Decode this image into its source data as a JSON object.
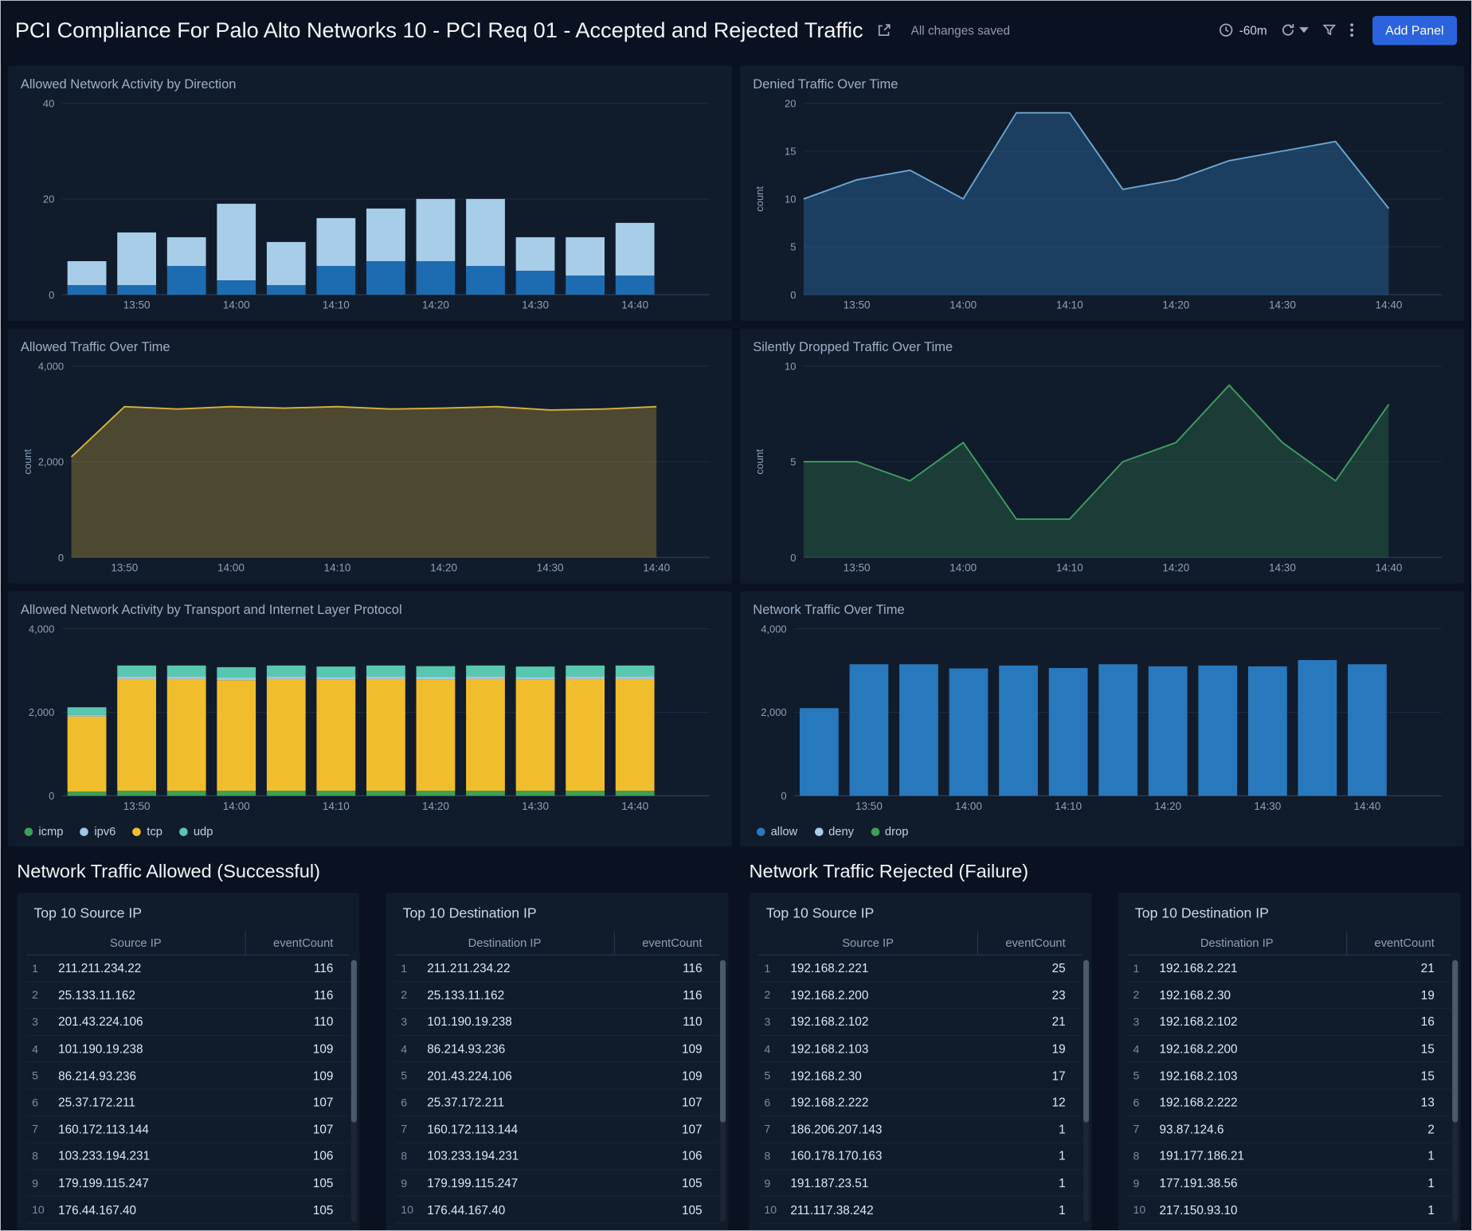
{
  "header": {
    "title": "PCI Compliance For Palo Alto Networks 10 - PCI Req 01 - Accepted and Rejected Traffic",
    "save_status": "All changes saved",
    "time_range": "-60m",
    "add_panel_label": "Add Panel"
  },
  "sections": {
    "allowed_title": "Network Traffic Allowed (Successful)",
    "rejected_title": "Network Traffic Rejected (Failure)"
  },
  "colors": {
    "page_bg": "#0a1120",
    "panel_bg": "#101b2b",
    "accent_blue": "#2a63dc",
    "bar_dark_blue": "#1d6cb1",
    "bar_light_blue": "#a7cde8",
    "line_yellow": "#d9b33c",
    "line_green": "#3f9e5f",
    "line_blue": "#6ea6cf",
    "tcp_yellow": "#f0bd2d",
    "udp_teal": "#57c7ad",
    "icmp_green": "#3da054",
    "allow_blue": "#2878bd"
  },
  "chart_data": [
    {
      "type": "stacked_bar",
      "title": "Allowed Network Activity by Direction",
      "categories": [
        "13:45",
        "13:50",
        "13:55",
        "14:00",
        "14:05",
        "14:10",
        "14:15",
        "14:20",
        "14:25",
        "14:30",
        "14:35",
        "14:40"
      ],
      "xticks": [
        "13:50",
        "14:00",
        "14:10",
        "14:20",
        "14:30",
        "14:40"
      ],
      "ylim": [
        0,
        40
      ],
      "yticks": [
        0,
        20,
        40
      ],
      "pad_slots": 1,
      "series": [
        {
          "name": "dark-blue",
          "color": "#1d6cb1",
          "values": [
            2,
            2,
            6,
            3,
            2,
            6,
            7,
            7,
            6,
            5,
            4,
            4
          ]
        },
        {
          "name": "light-blue",
          "color": "#a7cde8",
          "values": [
            5,
            11,
            6,
            16,
            9,
            10,
            11,
            13,
            14,
            7,
            8,
            11
          ]
        }
      ]
    },
    {
      "type": "area",
      "title": "Denied Traffic Over Time",
      "ylabel": "count",
      "categories": [
        "13:45",
        "13:50",
        "13:55",
        "14:00",
        "14:05",
        "14:10",
        "14:15",
        "14:20",
        "14:25",
        "14:30",
        "14:35",
        "14:40"
      ],
      "xticks": [
        "13:50",
        "14:00",
        "14:10",
        "14:20",
        "14:30",
        "14:40"
      ],
      "ylim": [
        0,
        20
      ],
      "yticks": [
        0,
        5,
        10,
        15,
        20
      ],
      "pad_slots": 1,
      "color": "#6ea6cf",
      "fill": "rgba(43,107,165,0.45)",
      "values": [
        10,
        12,
        13,
        10,
        19,
        19,
        11,
        12,
        14,
        15,
        16,
        9
      ]
    },
    {
      "type": "area",
      "title": "Allowed Traffic Over Time",
      "ylabel": "count",
      "categories": [
        "13:45",
        "13:50",
        "13:55",
        "14:00",
        "14:05",
        "14:10",
        "14:15",
        "14:20",
        "14:25",
        "14:30",
        "14:35",
        "14:40"
      ],
      "xticks": [
        "13:50",
        "14:00",
        "14:10",
        "14:20",
        "14:30",
        "14:40"
      ],
      "ylim": [
        0,
        4000
      ],
      "yticks": [
        0,
        2000,
        4000
      ],
      "pad_slots": 1,
      "color": "#d9b33c",
      "fill": "rgba(217,179,60,0.30)",
      "values": [
        2100,
        3150,
        3100,
        3150,
        3120,
        3150,
        3100,
        3120,
        3150,
        3080,
        3100,
        3150
      ]
    },
    {
      "type": "area",
      "title": "Silently Dropped Traffic Over Time",
      "ylabel": "count",
      "categories": [
        "13:45",
        "13:50",
        "13:55",
        "14:00",
        "14:05",
        "14:10",
        "14:15",
        "14:20",
        "14:25",
        "14:30",
        "14:35",
        "14:40"
      ],
      "xticks": [
        "13:50",
        "14:00",
        "14:10",
        "14:20",
        "14:30",
        "14:40"
      ],
      "ylim": [
        0,
        10
      ],
      "yticks": [
        0,
        5,
        10
      ],
      "pad_slots": 1,
      "color": "#3f9e5f",
      "fill": "rgba(63,158,95,0.25)",
      "values": [
        5,
        5,
        4,
        6,
        2,
        2,
        5,
        6,
        9,
        6,
        4,
        8
      ]
    },
    {
      "type": "stacked_bar",
      "title": "Allowed Network Activity by Transport and Internet Layer Protocol",
      "categories": [
        "13:45",
        "13:50",
        "13:55",
        "14:00",
        "14:05",
        "14:10",
        "14:15",
        "14:20",
        "14:25",
        "14:30",
        "14:35",
        "14:40"
      ],
      "xticks": [
        "13:50",
        "14:00",
        "14:10",
        "14:20",
        "14:30",
        "14:40"
      ],
      "ylim": [
        0,
        4000
      ],
      "yticks": [
        0,
        2000,
        4000
      ],
      "pad_slots": 1,
      "series": [
        {
          "name": "icmp",
          "color": "#3da054",
          "values": [
            100,
            120,
            120,
            120,
            120,
            120,
            120,
            120,
            120,
            120,
            120,
            120
          ]
        },
        {
          "name": "tcp",
          "color": "#f0bd2d",
          "values": [
            1800,
            2680,
            2680,
            2650,
            2680,
            2660,
            2680,
            2670,
            2680,
            2660,
            2680,
            2680
          ]
        },
        {
          "name": "ipv6",
          "color": "#9ec9e4",
          "values": [
            40,
            60,
            60,
            60,
            60,
            60,
            60,
            60,
            60,
            60,
            60,
            60
          ]
        },
        {
          "name": "udp",
          "color": "#57c7ad",
          "values": [
            180,
            260,
            260,
            250,
            260,
            255,
            260,
            255,
            260,
            255,
            260,
            260
          ]
        }
      ],
      "legend": [
        {
          "label": "icmp",
          "color": "#3da054"
        },
        {
          "label": "ipv6",
          "color": "#9ec9e4"
        },
        {
          "label": "tcp",
          "color": "#f0bd2d"
        },
        {
          "label": "udp",
          "color": "#57c7ad"
        }
      ]
    },
    {
      "type": "bar",
      "title": "Network Traffic Over Time",
      "categories": [
        "13:45",
        "13:50",
        "13:55",
        "14:00",
        "14:05",
        "14:10",
        "14:15",
        "14:20",
        "14:25",
        "14:30",
        "14:35",
        "14:40"
      ],
      "xticks": [
        "13:50",
        "14:00",
        "14:10",
        "14:20",
        "14:30",
        "14:40"
      ],
      "ylim": [
        0,
        4000
      ],
      "yticks": [
        0,
        2000,
        4000
      ],
      "pad_slots": 1,
      "color": "#2878bd",
      "values": [
        2100,
        3150,
        3150,
        3050,
        3120,
        3060,
        3150,
        3100,
        3120,
        3100,
        3250,
        3150
      ],
      "legend": [
        {
          "label": "allow",
          "color": "#2878bd"
        },
        {
          "label": "deny",
          "color": "#a7cde8"
        },
        {
          "label": "drop",
          "color": "#3da054"
        }
      ]
    }
  ],
  "tables": [
    {
      "section": "allowed",
      "title": "Top 10 Source IP",
      "columns": [
        "Source IP",
        "eventCount"
      ],
      "rows": [
        [
          1,
          "211.211.234.22",
          116
        ],
        [
          2,
          "25.133.11.162",
          116
        ],
        [
          3,
          "201.43.224.106",
          110
        ],
        [
          4,
          "101.190.19.238",
          109
        ],
        [
          5,
          "86.214.93.236",
          109
        ],
        [
          6,
          "25.37.172.211",
          107
        ],
        [
          7,
          "160.172.113.144",
          107
        ],
        [
          8,
          "103.233.194.231",
          106
        ],
        [
          9,
          "179.199.115.247",
          105
        ],
        [
          10,
          "176.44.167.40",
          105
        ]
      ]
    },
    {
      "section": "allowed",
      "title": "Top 10 Destination IP",
      "columns": [
        "Destination IP",
        "eventCount"
      ],
      "rows": [
        [
          1,
          "211.211.234.22",
          116
        ],
        [
          2,
          "25.133.11.162",
          116
        ],
        [
          3,
          "101.190.19.238",
          110
        ],
        [
          4,
          "86.214.93.236",
          109
        ],
        [
          5,
          "201.43.224.106",
          109
        ],
        [
          6,
          "25.37.172.211",
          107
        ],
        [
          7,
          "160.172.113.144",
          107
        ],
        [
          8,
          "103.233.194.231",
          106
        ],
        [
          9,
          "179.199.115.247",
          105
        ],
        [
          10,
          "176.44.167.40",
          105
        ]
      ]
    },
    {
      "section": "rejected",
      "title": "Top 10 Source IP",
      "columns": [
        "Source IP",
        "eventCount"
      ],
      "rows": [
        [
          1,
          "192.168.2.221",
          25
        ],
        [
          2,
          "192.168.2.200",
          23
        ],
        [
          3,
          "192.168.2.102",
          21
        ],
        [
          4,
          "192.168.2.103",
          19
        ],
        [
          5,
          "192.168.2.30",
          17
        ],
        [
          6,
          "192.168.2.222",
          12
        ],
        [
          7,
          "186.206.207.143",
          1
        ],
        [
          8,
          "160.178.170.163",
          1
        ],
        [
          9,
          "191.187.23.51",
          1
        ],
        [
          10,
          "211.117.38.242",
          1
        ]
      ]
    },
    {
      "section": "rejected",
      "title": "Top 10 Destination IP",
      "columns": [
        "Destination IP",
        "eventCount"
      ],
      "rows": [
        [
          1,
          "192.168.2.221",
          21
        ],
        [
          2,
          "192.168.2.30",
          19
        ],
        [
          3,
          "192.168.2.102",
          16
        ],
        [
          4,
          "192.168.2.200",
          15
        ],
        [
          5,
          "192.168.2.103",
          15
        ],
        [
          6,
          "192.168.2.222",
          13
        ],
        [
          7,
          "93.87.124.6",
          2
        ],
        [
          8,
          "191.177.186.21",
          1
        ],
        [
          9,
          "177.191.38.56",
          1
        ],
        [
          10,
          "217.150.93.10",
          1
        ]
      ]
    }
  ]
}
